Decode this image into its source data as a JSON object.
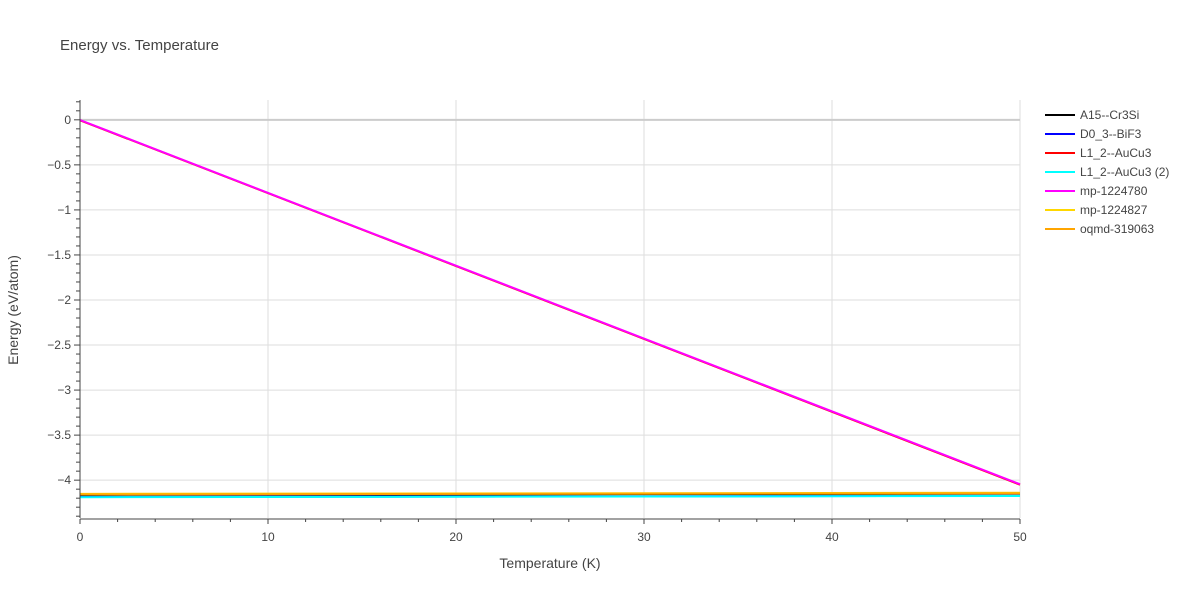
{
  "chart_data": {
    "type": "line",
    "title": "Energy vs. Temperature",
    "xlabel": "Temperature (K)",
    "ylabel": "Energy (eV/atom)",
    "xlim": [
      0,
      50
    ],
    "ylim": [
      -4.42,
      0.22
    ],
    "x_ticks": [
      0,
      10,
      20,
      30,
      40,
      50
    ],
    "y_ticks": [
      0,
      -0.5,
      -1,
      -1.5,
      -2,
      -2.5,
      -3,
      -3.5,
      -4
    ],
    "y_tick_labels": [
      "0",
      "−0.5",
      "−1",
      "−1.5",
      "−2",
      "−2.5",
      "−3",
      "−3.5",
      "−4"
    ],
    "grid": true,
    "legend_position": "right",
    "series": [
      {
        "name": "A15--Cr3Si",
        "color": "#000000",
        "x": [
          0,
          50
        ],
        "y": [
          -4.163,
          -4.15
        ]
      },
      {
        "name": "D0_3--BiF3",
        "color": "#0000ff",
        "x": [
          0,
          50
        ],
        "y": [
          -4.187,
          -4.174
        ]
      },
      {
        "name": "L1_2--AuCu3",
        "color": "#ff0000",
        "x": [
          0,
          50
        ],
        "y": [
          -0.005,
          -4.05
        ]
      },
      {
        "name": "L1_2--AuCu3 (2)",
        "color": "#00ffff",
        "x": [
          0,
          50
        ],
        "y": [
          -4.189,
          -4.176
        ]
      },
      {
        "name": "mp-1224780",
        "color": "#ff00ff",
        "x": [
          0,
          50
        ],
        "y": [
          -0.002,
          -4.045
        ]
      },
      {
        "name": "mp-1224827",
        "color": "#ffd700",
        "x": [
          0,
          50
        ],
        "y": [
          -4.152,
          -4.14
        ]
      },
      {
        "name": "oqmd-319063",
        "color": "#ffa500",
        "x": [
          0,
          50
        ],
        "y": [
          -4.158,
          -4.146
        ]
      }
    ]
  }
}
